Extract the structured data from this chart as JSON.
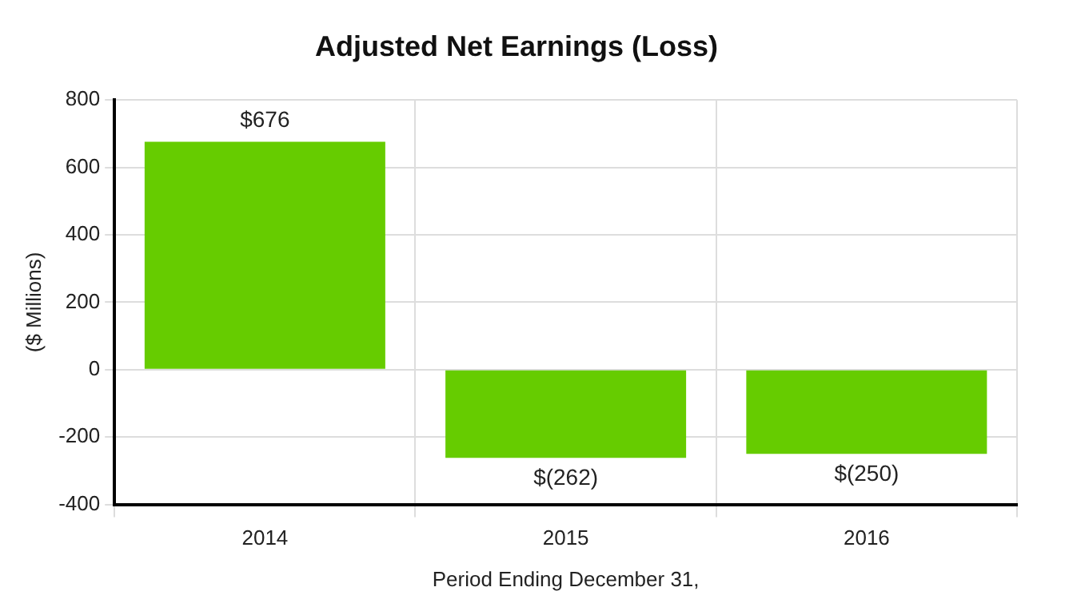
{
  "chart_data": {
    "type": "bar",
    "title": "Adjusted Net Earnings (Loss)",
    "xlabel": "Period Ending December 31,",
    "ylabel": "($ Millions)",
    "categories": [
      "2014",
      "2015",
      "2016"
    ],
    "values": [
      676,
      -262,
      -250
    ],
    "value_labels": [
      "$676",
      "$(262)",
      "$(250)"
    ],
    "color": "#66cc00",
    "ylim": [
      -400,
      800
    ],
    "yticks": [
      -400,
      -200,
      0,
      200,
      400,
      600,
      800
    ],
    "grid": true
  }
}
